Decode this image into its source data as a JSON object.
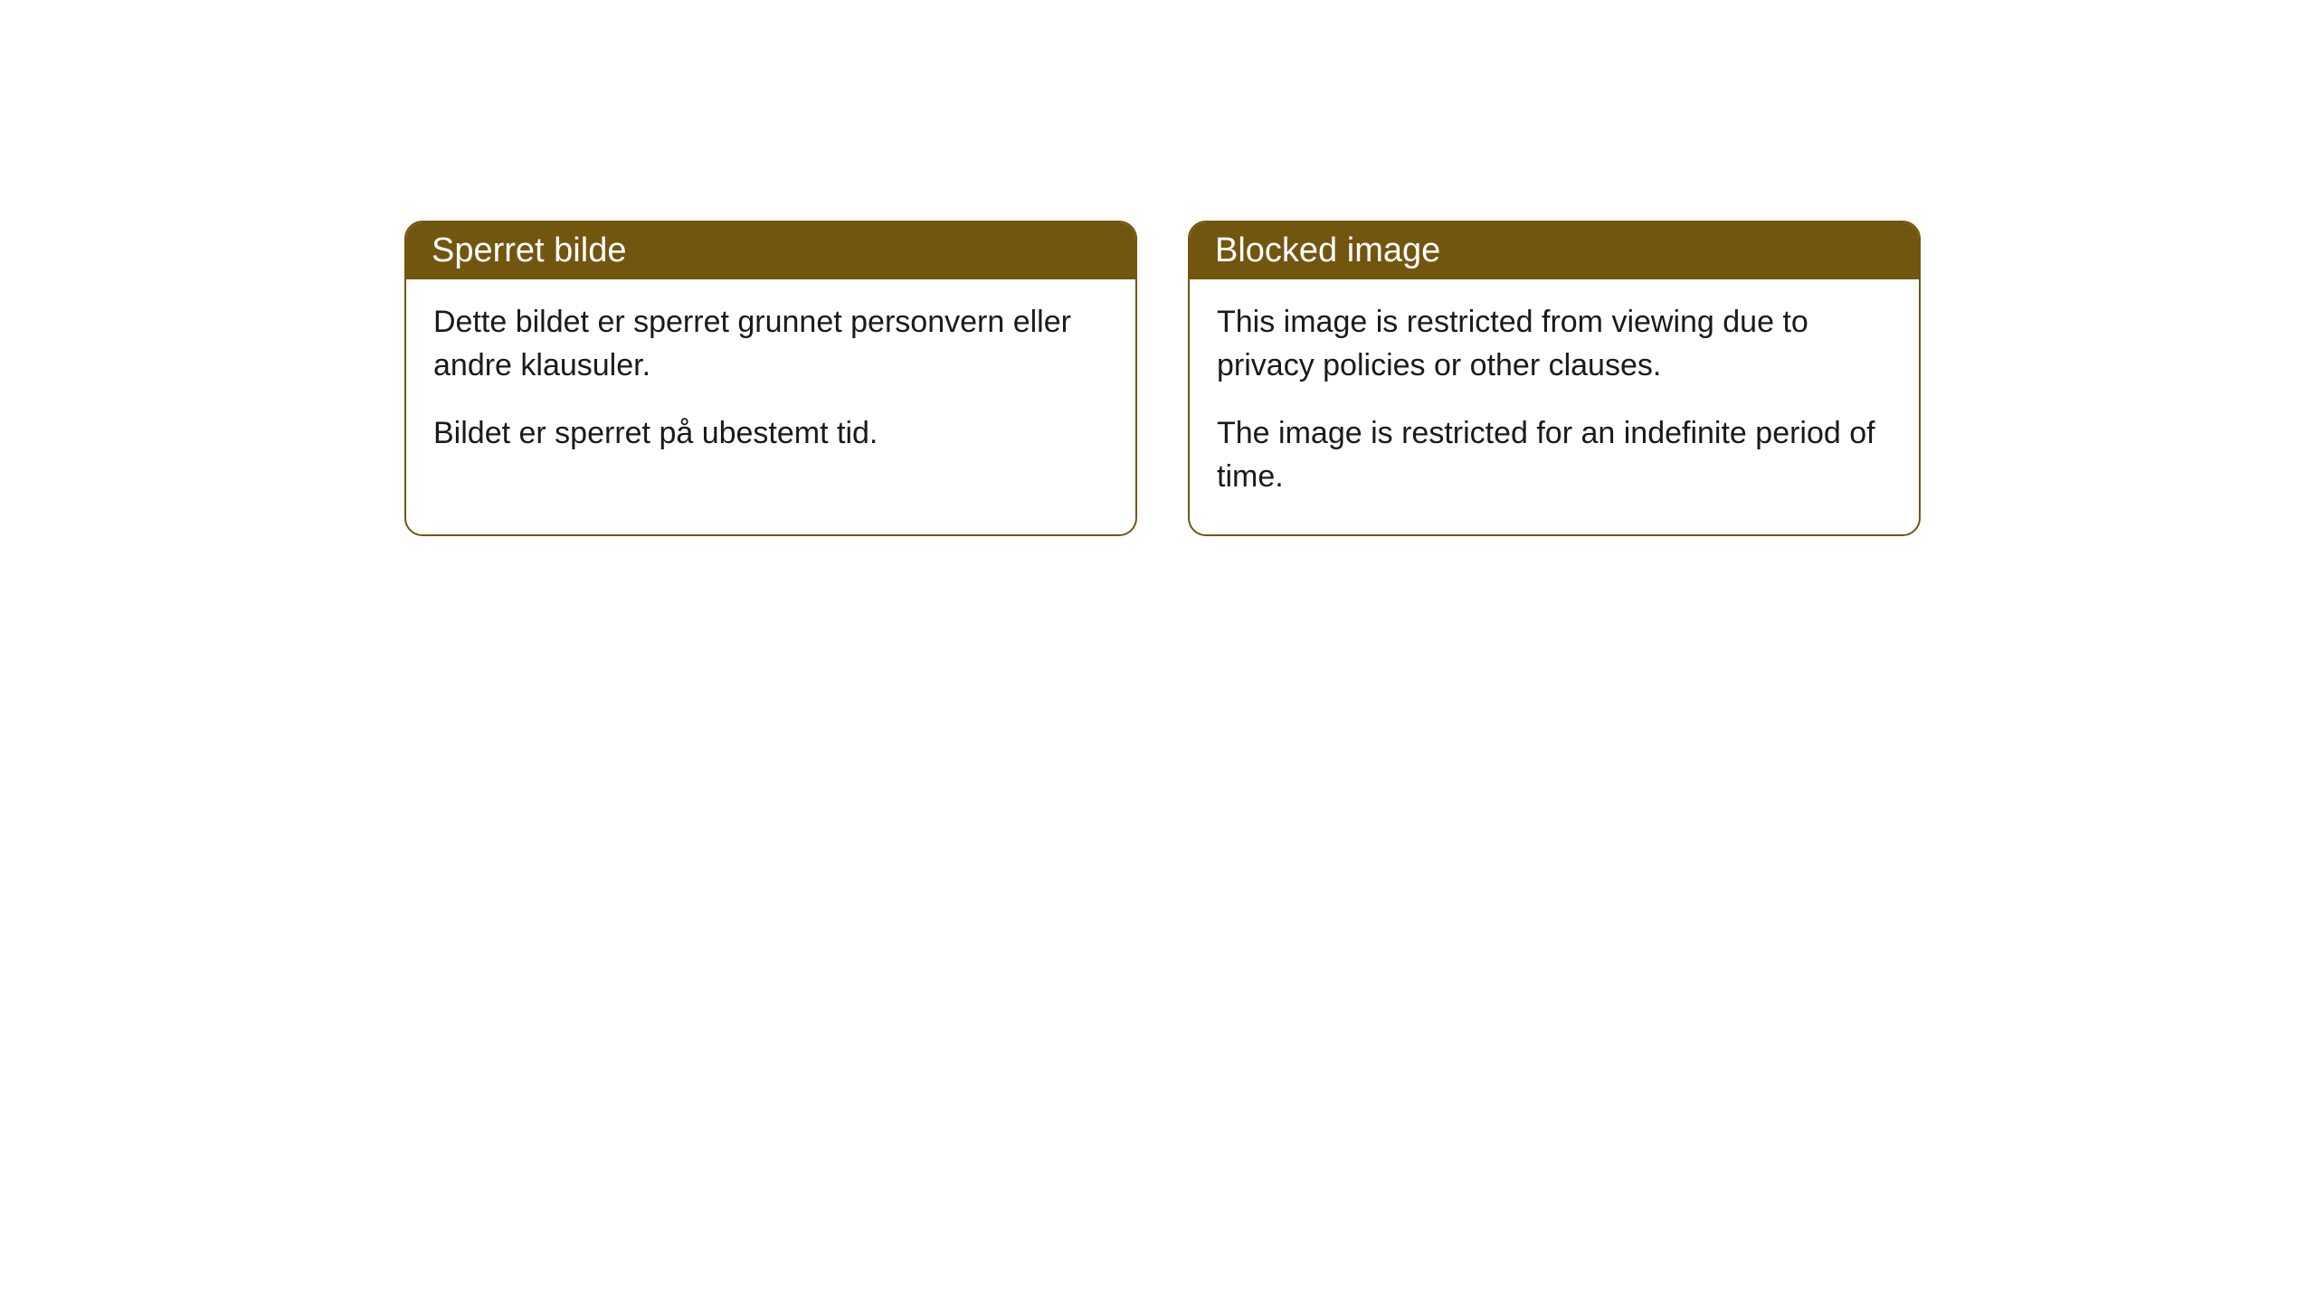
{
  "cards": [
    {
      "title": "Sperret bilde",
      "paragraph1": "Dette bildet er sperret grunnet personvern eller andre klausuler.",
      "paragraph2": "Bildet er sperret på ubestemt tid."
    },
    {
      "title": "Blocked image",
      "paragraph1": "This image is restricted from viewing due to privacy policies or other clauses.",
      "paragraph2": "The image is restricted for an indefinite period of time."
    }
  ],
  "styles": {
    "header_background": "#725610",
    "header_text_color": "#ffffff",
    "border_color": "#725610",
    "body_text_color": "#1a1a1a",
    "page_background": "#ffffff",
    "border_radius": 20,
    "header_fontsize": 38,
    "body_fontsize": 34
  }
}
